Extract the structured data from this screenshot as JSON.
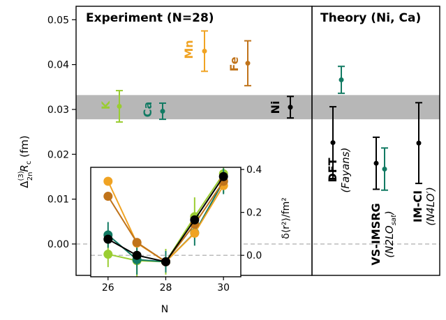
{
  "colors": {
    "lime": "#9acd32",
    "teal": "#127a63",
    "orange": "#f0a323",
    "brown": "#c0731a",
    "black": "#000000",
    "band": "#aaaaaa",
    "zero_line": "#bbbbbb"
  },
  "panels": {
    "experiment_title": "Experiment (N=28)",
    "theory_title": "Theory (Ni, Ca)"
  },
  "axes": {
    "ylabel_main": "Δ",
    "ylabel_sup": "(3)",
    "ylabel_sub": "2n",
    "ylabel_tail": "R",
    "ylabel_tail_sub": "c",
    "ylabel_unit": " (fm)",
    "yticks": [
      "0.00",
      "0.01",
      "0.02",
      "0.03",
      "0.04",
      "0.05"
    ]
  },
  "labels": {
    "K": "K",
    "Ca": "Ca",
    "Mn": "Mn",
    "Fe": "Fe",
    "Ni": "Ni",
    "dft_name": "DFT",
    "dft_sub": "(Fayans)",
    "vs_name": "VS-IMSRG",
    "vs_sub": "(N2LO",
    "vs_sub_sub": "sat",
    "vs_sub_tail": ")",
    "im_name": "IM-CI",
    "im_sub": "(N4LO′)"
  },
  "inset": {
    "xlabel": "N",
    "ylabel": "δ⟨r²⟩/fm²",
    "xticks": [
      "26",
      "28",
      "30"
    ],
    "yticks": [
      "0.0",
      "0.2",
      "0.4"
    ]
  },
  "chart_data": [
    {
      "type": "scatter",
      "title": "Experiment (N=28)",
      "ylabel": "Δ2n(3) Rc (fm)",
      "ylim": [
        -0.007,
        0.053
      ],
      "points": [
        {
          "name": "K",
          "y": 0.0307,
          "err": 0.0035,
          "color": "lime"
        },
        {
          "name": "Ca",
          "y": 0.0296,
          "err": 0.0018,
          "color": "teal"
        },
        {
          "name": "Mn",
          "y": 0.043,
          "err": 0.0045,
          "color": "orange"
        },
        {
          "name": "Fe",
          "y": 0.0403,
          "err": 0.005,
          "color": "brown"
        },
        {
          "name": "Ni",
          "y": 0.0305,
          "err": 0.0024,
          "color": "black"
        }
      ],
      "ni_band": [
        0.0278,
        0.0332
      ],
      "zero_line": 0.0
    },
    {
      "type": "scatter",
      "title": "Theory (Ni, Ca)",
      "ylim": [
        -0.007,
        0.053
      ],
      "series": [
        {
          "name": "DFT (Fayans)",
          "points": [
            {
              "element": "Ni",
              "y": 0.0226,
              "err": 0.008
            },
            {
              "element": "Ca",
              "y": 0.0366,
              "err": 0.003
            }
          ]
        },
        {
          "name": "VS-IMSRG (N2LO sat)",
          "points": [
            {
              "element": "Ni",
              "y": 0.018,
              "err": 0.0058
            },
            {
              "element": "Ca",
              "y": 0.0167,
              "err": 0.0047
            }
          ]
        },
        {
          "name": "IM-CI (N4LO′)",
          "points": [
            {
              "element": "Ni",
              "y": 0.0225,
              "err": 0.009
            }
          ]
        }
      ]
    },
    {
      "type": "line",
      "xlabel": "N",
      "ylabel": "δ⟨r²⟩/fm²",
      "xlim": [
        25.4,
        30.6
      ],
      "ylim": [
        -0.1,
        0.41
      ],
      "series": [
        {
          "color": "lime",
          "x": [
            26,
            27,
            28,
            29,
            30
          ],
          "y": [
            0.005,
            -0.025,
            -0.03,
            0.18,
            0.38
          ],
          "err": [
            0.06,
            0.09,
            0.06,
            0.09,
            0.09
          ]
        },
        {
          "color": "teal",
          "x": [
            26,
            27,
            28,
            29,
            30
          ],
          "y": [
            0.095,
            -0.02,
            -0.03,
            0.105,
            0.345
          ],
          "err": [
            0.06,
            0.07,
            0.05,
            0.06,
            0.06
          ]
        },
        {
          "color": "orange",
          "x": [
            26,
            27,
            28,
            29,
            30
          ],
          "y": [
            0.345,
            0.057,
            -0.03,
            0.103,
            0.325
          ],
          "err": [
            0.015,
            0.015,
            0.015,
            0.015,
            0.015
          ]
        },
        {
          "color": "brown",
          "x": [
            26,
            27,
            28,
            29,
            30
          ],
          "y": [
            0.275,
            0.06,
            -0.03,
            0.145,
            0.345
          ],
          "err": [
            0.015,
            0.015,
            0.015,
            0.015,
            0.015
          ]
        },
        {
          "color": "black",
          "x": [
            26,
            27,
            28,
            29,
            30
          ],
          "y": [
            0.075,
            0.0,
            -0.03,
            0.165,
            0.367
          ],
          "err": [
            0.015,
            0.015,
            0.015,
            0.015,
            0.015
          ]
        }
      ]
    }
  ]
}
